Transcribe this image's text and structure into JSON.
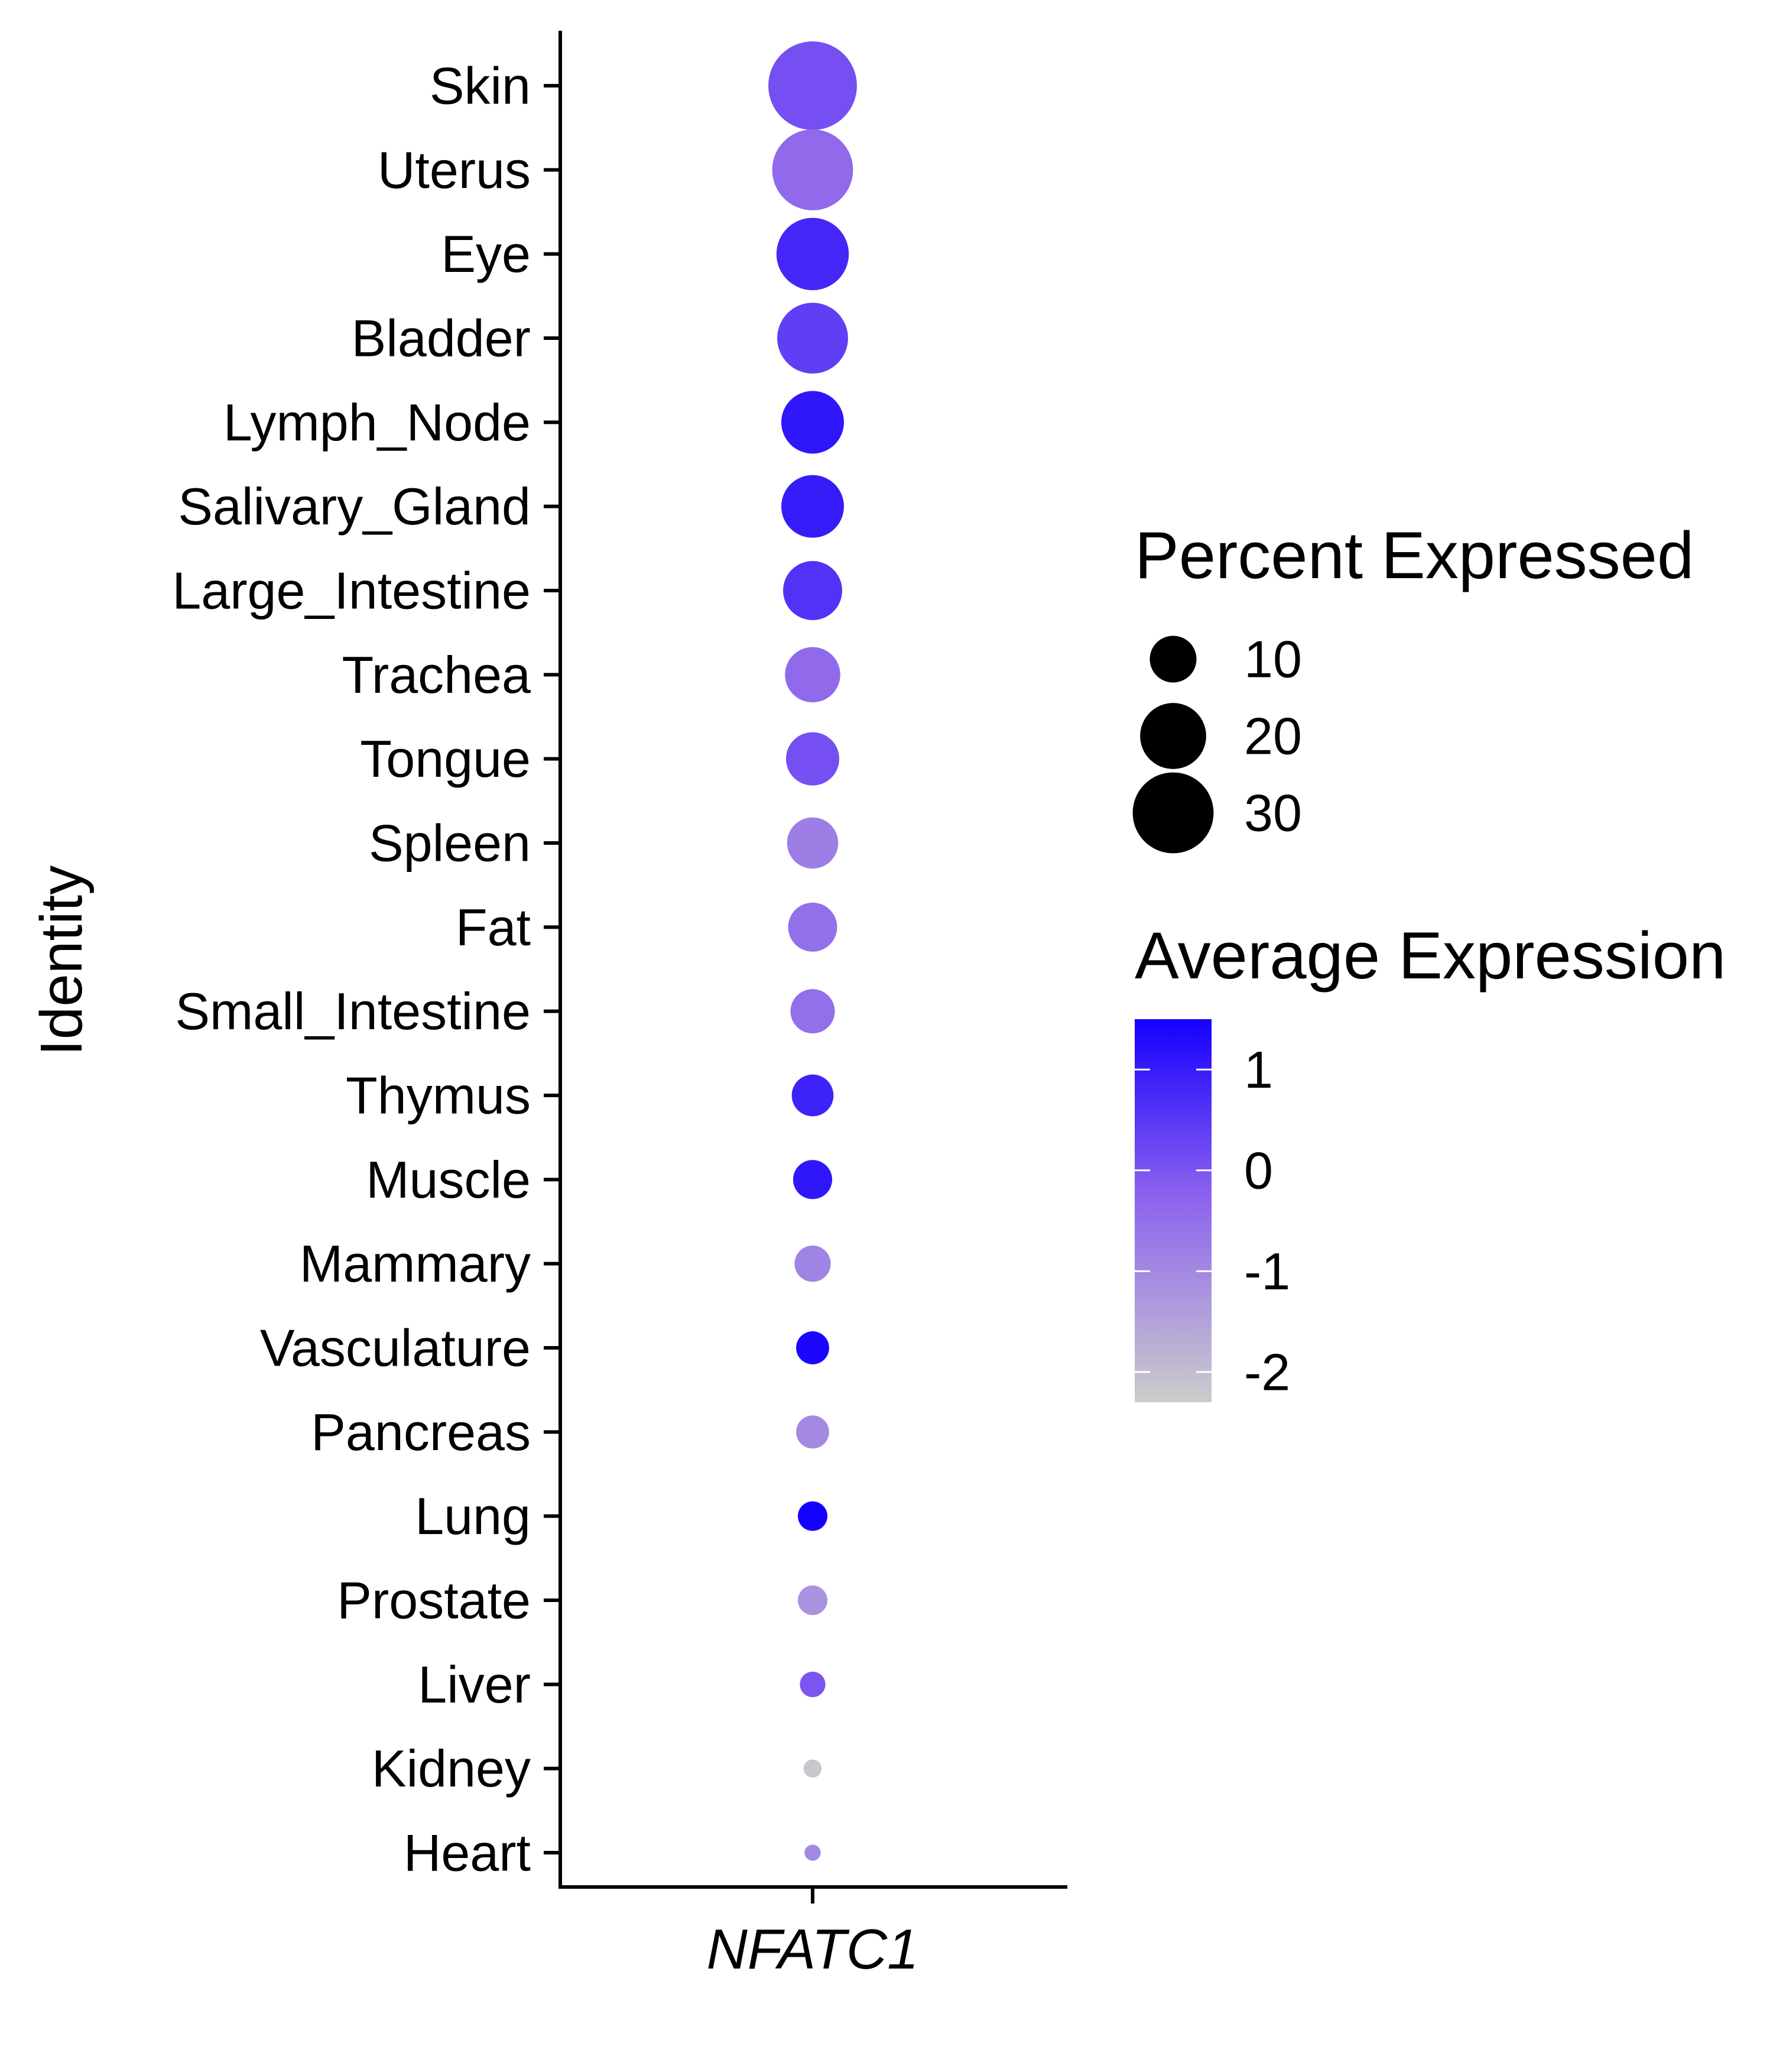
{
  "colors": {
    "low": "#cccccc",
    "mid": "#8a60ee",
    "high": "#1400ff",
    "axis": "#000000",
    "background": "#ffffff"
  },
  "chart_data": {
    "type": "scatter",
    "subtype": "dot-plot",
    "xlabel": "",
    "ylabel": "Identity",
    "x_categories": [
      "NFATC1"
    ],
    "gene_italic": true,
    "identities": [
      "Skin",
      "Uterus",
      "Eye",
      "Bladder",
      "Lymph_Node",
      "Salivary_Gland",
      "Large_Intestine",
      "Trachea",
      "Tongue",
      "Spleen",
      "Fat",
      "Small_Intestine",
      "Thymus",
      "Muscle",
      "Mammary",
      "Vasculature",
      "Pancreas",
      "Lung",
      "Prostate",
      "Liver",
      "Kidney",
      "Heart"
    ],
    "percent_expressed": [
      36,
      30,
      24,
      23,
      18,
      18,
      16,
      14,
      13,
      12,
      11,
      9,
      8,
      7,
      6,
      5,
      5,
      4,
      4,
      3,
      1.5,
      1.2
    ],
    "average_expression": [
      0.1,
      -0.4,
      0.8,
      0.4,
      1.1,
      1.0,
      0.6,
      -0.4,
      0.1,
      -0.8,
      -0.5,
      -0.5,
      0.9,
      1.1,
      -0.9,
      1.4,
      -1.0,
      1.5,
      -1.2,
      0.0,
      -2.2,
      -1.0
    ],
    "grid": false,
    "legend_position": "right",
    "size_legend": {
      "title": "Percent Expressed",
      "values": [
        10,
        20,
        30
      ],
      "labels": [
        "10",
        "20",
        "30"
      ]
    },
    "color_legend": {
      "title": "Average Expression",
      "range": [
        -2.3,
        1.5
      ],
      "ticks": [
        1,
        0,
        -1,
        -2
      ],
      "labels": [
        "1",
        "0",
        "-1",
        "-2"
      ]
    }
  }
}
